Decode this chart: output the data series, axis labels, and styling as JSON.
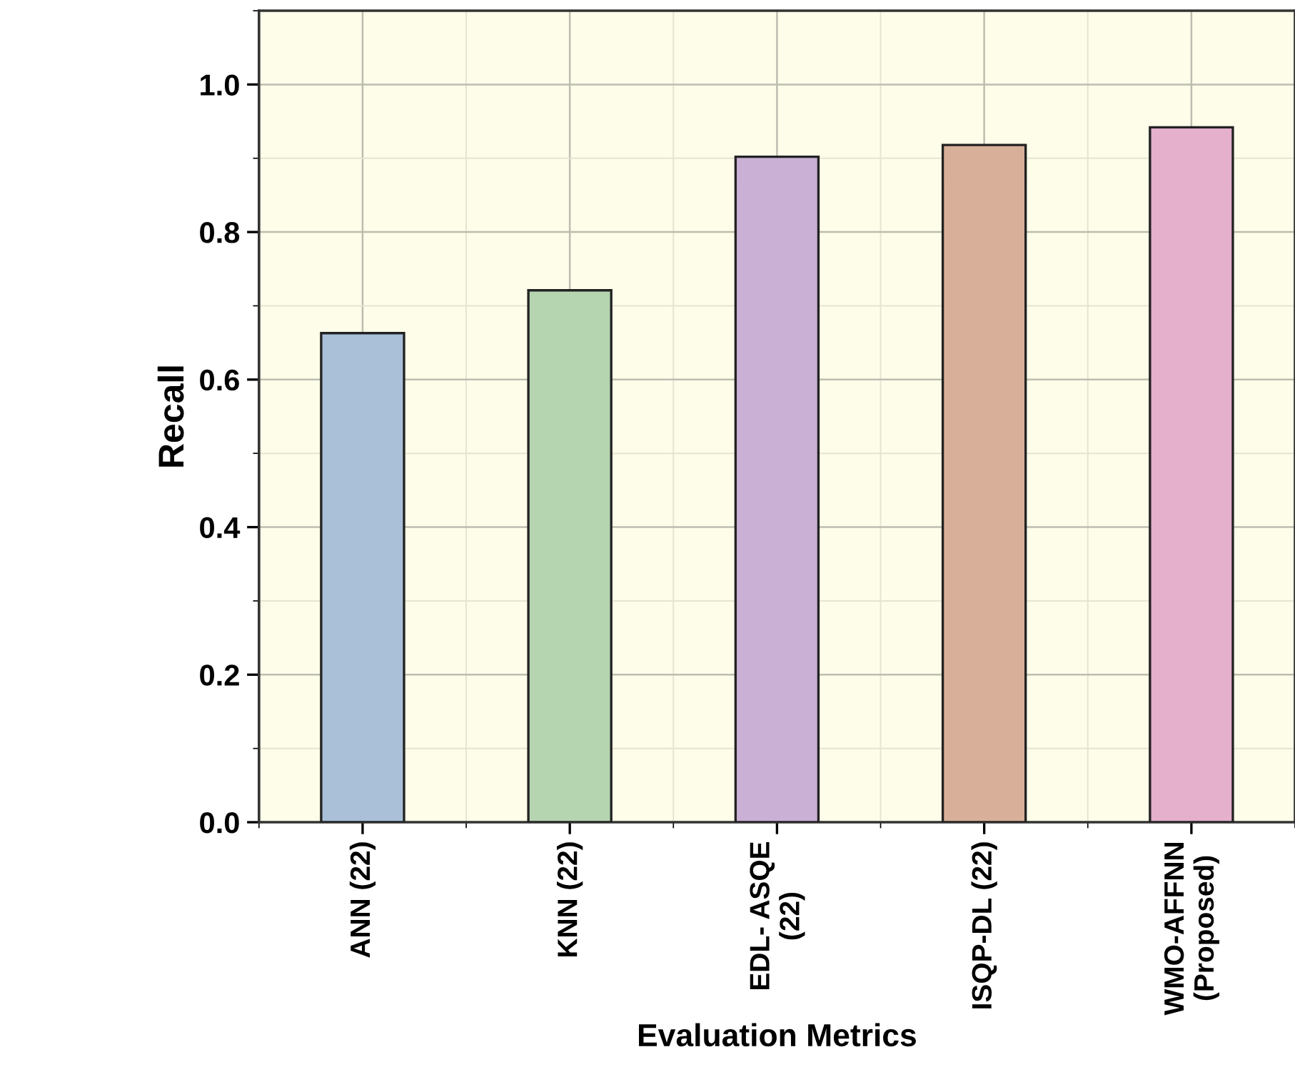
{
  "chart_data": {
    "type": "bar",
    "xlabel": "Evaluation Metrics",
    "ylabel": "Recall",
    "categories": [
      "ANN (22)",
      "KNN (22)",
      "EDL- ASQE\n(22)",
      "ISQP-DL (22)",
      "WMO-AFFNN\n(Proposed)"
    ],
    "values": [
      0.663,
      0.721,
      0.902,
      0.918,
      0.942
    ],
    "colors": [
      "#a9c0d8",
      "#b5d4b0",
      "#c9b0d4",
      "#d8b09a",
      "#e4b0cc"
    ],
    "ylim": [
      0,
      1.1
    ],
    "yticks": [
      {
        "value": 0,
        "label": "0.0"
      },
      0.2,
      0.4,
      0.6,
      0.8,
      {
        "value": 1,
        "label": "1.0"
      }
    ],
    "grid": true
  }
}
